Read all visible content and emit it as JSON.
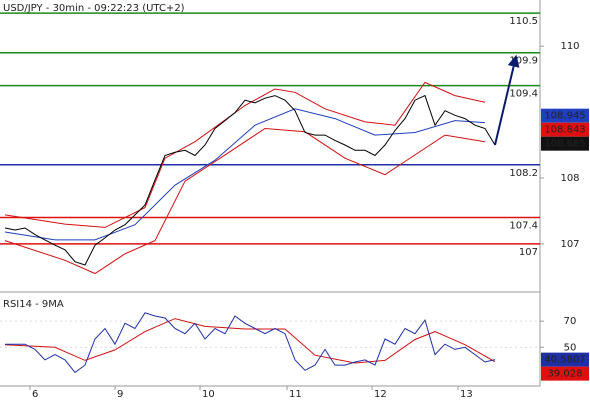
{
  "chart_data": [
    {
      "type": "line",
      "title": "USD/JPY - 30min - 09:22:23 (UTC+2)",
      "xlim": [
        -0.5,
        53.5
      ],
      "ylim": [
        106.3,
        110.7
      ],
      "yticks": [
        107,
        108,
        110
      ],
      "series": [
        {
          "color": "#d01010",
          "x": [
            0,
            6,
            10,
            14,
            16,
            19,
            24,
            27,
            29,
            32,
            36,
            39,
            42,
            45,
            48
          ],
          "values": [
            107.44,
            107.3,
            107.25,
            107.55,
            108.3,
            108.55,
            109.1,
            109.35,
            109.3,
            109.05,
            108.85,
            108.8,
            109.45,
            109.25,
            109.15
          ]
        },
        {
          "color": "#d01010",
          "x": [
            0,
            6,
            9,
            12,
            15,
            18,
            22,
            26,
            30,
            34,
            38,
            40,
            44,
            48
          ],
          "values": [
            107.05,
            106.75,
            106.55,
            106.85,
            107.05,
            107.95,
            108.35,
            108.75,
            108.7,
            108.3,
            108.05,
            108.25,
            108.65,
            108.55
          ]
        },
        {
          "color": "#1f3fbf",
          "x": [
            0,
            5,
            9,
            13,
            17,
            21,
            25,
            29,
            33,
            37,
            41,
            45,
            48
          ],
          "values": [
            107.18,
            107.06,
            107.06,
            107.29,
            107.89,
            108.27,
            108.8,
            109.05,
            108.9,
            108.65,
            108.69,
            108.87,
            108.84
          ]
        },
        {
          "color": "#000000",
          "x": [
            0,
            1,
            2,
            3,
            4,
            5,
            6,
            7,
            8,
            9,
            10,
            11,
            12,
            13,
            14,
            15,
            16,
            17,
            18,
            19,
            20,
            21,
            22,
            23,
            24,
            25,
            26,
            27,
            28,
            29,
            30,
            31,
            32,
            33,
            34,
            35,
            36,
            37,
            38,
            39,
            40,
            41,
            42,
            43,
            44,
            45,
            46,
            47,
            48,
            49
          ],
          "values": [
            107.24,
            107.21,
            107.24,
            107.14,
            107.06,
            106.98,
            106.91,
            106.73,
            106.68,
            106.98,
            107.09,
            107.21,
            107.29,
            107.44,
            107.59,
            107.97,
            108.34,
            108.39,
            108.42,
            108.34,
            108.5,
            108.75,
            108.87,
            108.99,
            109.18,
            109.14,
            109.21,
            109.25,
            109.18,
            109.02,
            108.69,
            108.65,
            108.65,
            108.57,
            108.5,
            108.42,
            108.42,
            108.34,
            108.5,
            108.72,
            108.9,
            109.18,
            109.25,
            108.8,
            109.02,
            108.95,
            108.9,
            108.8,
            108.75,
            108.5
          ]
        }
      ],
      "projection": {
        "color": "#0b1a6b",
        "x": [
          49,
          51
        ],
        "values": [
          108.5,
          109.78
        ]
      },
      "levels": [
        {
          "value": 110.5,
          "color": "#1a8a1a"
        },
        {
          "value": 109.9,
          "color": "#1a8a1a"
        },
        {
          "value": 109.4,
          "color": "#1a8a1a"
        },
        {
          "value": 108.2,
          "color": "#1f2fa8"
        },
        {
          "value": 107.4,
          "color": "#e01010"
        },
        {
          "value": 107,
          "color": "#e01010"
        }
      ],
      "price_tags": [
        {
          "value": 108.945,
          "color": "#1f3fbf"
        },
        {
          "value": 108.843,
          "color": "#e01010"
        },
        {
          "value": 108.685,
          "color": "#111111"
        }
      ]
    },
    {
      "type": "line",
      "title": "RSI14 - 9MA",
      "xlim": [
        -0.5,
        53.5
      ],
      "ylim": [
        20.4,
        90.8
      ],
      "yticks": [
        50,
        70
      ],
      "xticks": [
        {
          "value": 2.5,
          "label": "6"
        },
        {
          "value": 11,
          "label": "9"
        },
        {
          "value": 19.5,
          "label": "10"
        },
        {
          "value": 28.2,
          "label": "11"
        },
        {
          "value": 36.7,
          "label": "12"
        },
        {
          "value": 45.3,
          "label": "13"
        }
      ],
      "series": [
        {
          "color": "#d01010",
          "x": [
            0,
            5,
            8,
            11,
            14,
            17,
            20,
            24,
            28,
            31,
            35,
            38,
            41,
            43,
            46,
            49
          ],
          "values": [
            52,
            50,
            40,
            48,
            62,
            72,
            66,
            64,
            64,
            44,
            38,
            40,
            56,
            62,
            52,
            39
          ]
        },
        {
          "color": "#1f2fa8",
          "x": [
            0,
            1,
            2,
            3,
            4,
            5,
            6,
            7,
            8,
            9,
            10,
            11,
            12,
            13,
            14,
            15,
            16,
            17,
            18,
            19,
            20,
            21,
            22,
            23,
            24,
            25,
            26,
            27,
            28,
            29,
            30,
            31,
            32,
            33,
            34,
            35,
            36,
            37,
            38,
            39,
            40,
            41,
            42,
            43,
            44,
            45,
            46,
            47,
            48,
            49
          ],
          "values": [
            52.4,
            52.4,
            52.4,
            48.4,
            40.4,
            44.4,
            40.4,
            30.8,
            36.4,
            56.4,
            64.4,
            52.4,
            68.4,
            64.4,
            76.4,
            74,
            72.4,
            64.4,
            60.4,
            68.4,
            56.4,
            64.4,
            60.4,
            74,
            68.4,
            64.4,
            60.4,
            64.4,
            60.4,
            40.4,
            32.4,
            36.4,
            48.4,
            36.4,
            36.4,
            38.8,
            40.4,
            36.4,
            56.4,
            52.4,
            64.4,
            60.4,
            70.8,
            44.4,
            52.4,
            48.4,
            50,
            44.4,
            38.8,
            40.6
          ]
        }
      ],
      "price_tags": [
        {
          "value": 40.5807,
          "color": "#1f2fa8"
        },
        {
          "value": 39.028,
          "color": "#e01010"
        }
      ]
    }
  ]
}
